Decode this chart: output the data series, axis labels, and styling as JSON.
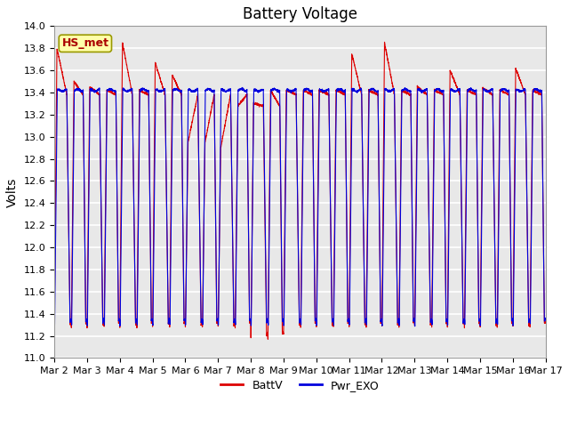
{
  "title": "Battery Voltage",
  "ylabel": "Volts",
  "ylim": [
    11.0,
    14.0
  ],
  "yticks": [
    11.0,
    11.2,
    11.4,
    11.6,
    11.8,
    12.0,
    12.2,
    12.4,
    12.6,
    12.8,
    13.0,
    13.2,
    13.4,
    13.6,
    13.8,
    14.0
  ],
  "xtick_labels": [
    "Mar 2",
    "Mar 3",
    "Mar 4",
    "Mar 5",
    "Mar 6",
    "Mar 7",
    "Mar 8",
    "Mar 9",
    "Mar 10",
    "Mar 11",
    "Mar 12",
    "Mar 13",
    "Mar 14",
    "Mar 15",
    "Mar 16",
    "Mar 17"
  ],
  "batt_color": "#dd0000",
  "exo_color": "#0000dd",
  "legend_labels": [
    "BattV",
    "Pwr_EXO"
  ],
  "annotation_text": "HS_met",
  "annotation_color": "#aa0000",
  "background_color": "#e8e8e8",
  "grid_color": "#ffffff",
  "title_fontsize": 12,
  "axis_fontsize": 10,
  "tick_fontsize": 8,
  "n_days": 15,
  "samples_per_day": 300,
  "batt_day_peaks": [
    13.8,
    13.45,
    13.85,
    13.67,
    12.95,
    12.9,
    13.3,
    13.42,
    13.42,
    13.75,
    13.85,
    13.45,
    13.6,
    13.44,
    13.62
  ],
  "batt_day_peaks2": [
    13.5,
    13.42,
    13.42,
    13.56,
    12.95,
    13.28,
    13.42,
    13.42,
    13.42,
    13.42,
    13.42,
    13.42,
    13.42,
    13.42,
    13.42
  ],
  "batt_troughs": [
    11.28,
    11.28,
    11.28,
    11.28,
    11.28,
    11.28,
    11.18,
    11.28,
    11.28,
    11.28,
    11.28,
    11.28,
    11.28,
    11.28,
    11.28
  ],
  "exo_peak": 13.42,
  "exo_trough": 11.3
}
